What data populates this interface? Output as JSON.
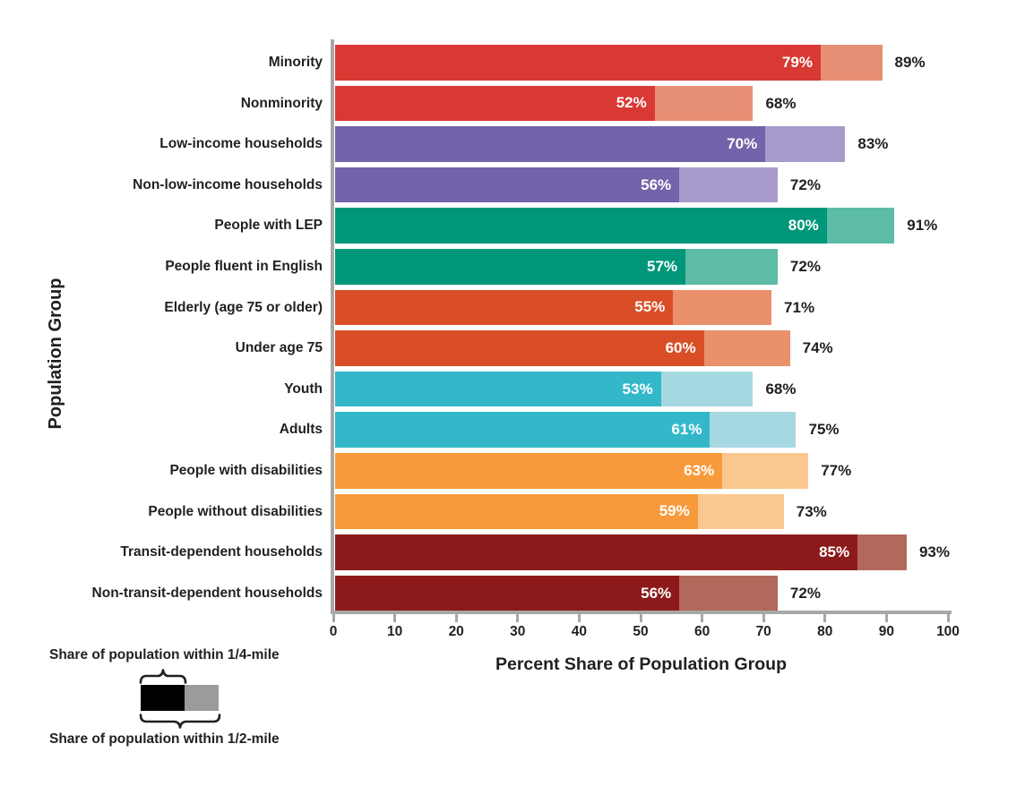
{
  "chart_data": {
    "type": "bar",
    "orientation": "horizontal",
    "xlabel": "Percent Share of Population Group",
    "ylabel": "Population Group",
    "xlim": [
      0,
      100
    ],
    "xticks": [
      0,
      10,
      20,
      30,
      40,
      50,
      60,
      70,
      80,
      90,
      100
    ],
    "grid": false,
    "value_suffix": "%",
    "series": [
      {
        "name": "Share of population within 1/4-mile",
        "key": "quarter"
      },
      {
        "name": "Share of population within 1/2-mile",
        "key": "half"
      }
    ],
    "rows": [
      {
        "label": "Minority",
        "quarter": 79,
        "half": 89,
        "dark": "#D83932",
        "light": "#E78F75"
      },
      {
        "label": "Nonminority",
        "quarter": 52,
        "half": 68,
        "dark": "#D83932",
        "light": "#E78F75"
      },
      {
        "label": "Low-income households",
        "quarter": 70,
        "half": 83,
        "dark": "#7462AA",
        "light": "#A99ACC"
      },
      {
        "label": "Non-low-income households",
        "quarter": 56,
        "half": 72,
        "dark": "#7462AA",
        "light": "#A99ACC"
      },
      {
        "label": "People with LEP",
        "quarter": 80,
        "half": 91,
        "dark": "#009679",
        "light": "#5CBCA5"
      },
      {
        "label": "People fluent in English",
        "quarter": 57,
        "half": 72,
        "dark": "#009679",
        "light": "#5CBCA5"
      },
      {
        "label": "Elderly (age 75 or older)",
        "quarter": 55,
        "half": 71,
        "dark": "#D94E26",
        "light": "#EA906B"
      },
      {
        "label": "Under age 75",
        "quarter": 60,
        "half": 74,
        "dark": "#D94E26",
        "light": "#EA906B"
      },
      {
        "label": "Youth",
        "quarter": 53,
        "half": 68,
        "dark": "#34B8C9",
        "light": "#A5D8E0"
      },
      {
        "label": "Adults",
        "quarter": 61,
        "half": 75,
        "dark": "#34B8C9",
        "light": "#A5D8E0"
      },
      {
        "label": "People with disabilities",
        "quarter": 63,
        "half": 77,
        "dark": "#F79A3B",
        "light": "#FAC88E"
      },
      {
        "label": "People without disabilities",
        "quarter": 59,
        "half": 73,
        "dark": "#F79A3B",
        "light": "#FAC88E"
      },
      {
        "label": "Transit-dependent households",
        "quarter": 85,
        "half": 93,
        "dark": "#8D1A1B",
        "light": "#B2685B"
      },
      {
        "label": "Non-transit-dependent households",
        "quarter": 56,
        "half": 72,
        "dark": "#8D1A1B",
        "light": "#B2685B"
      }
    ],
    "axis_color": "#A7A7A7",
    "text_color": "#231F20"
  },
  "legend": {
    "quarter_mile_label": "Share of population within 1/4-mile",
    "half_mile_label": "Share of population within 1/2-mile",
    "swatch_dark_color": "#000000",
    "swatch_light_color": "#9B9B9B"
  }
}
